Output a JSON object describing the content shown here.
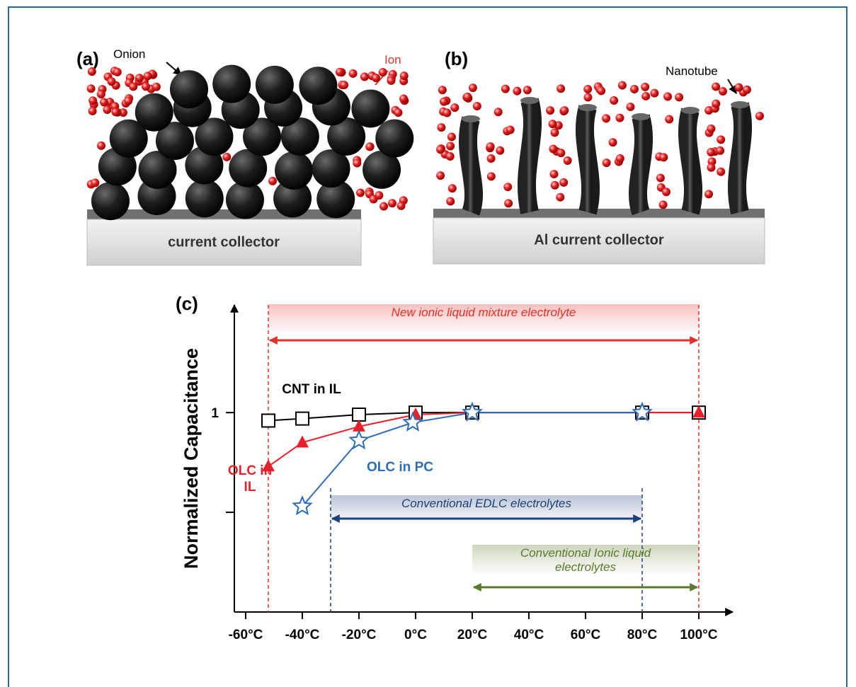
{
  "panel_a": {
    "label": "(a)",
    "particle_label": "Onion",
    "ion_label": "Ion",
    "collector_label": "current collector"
  },
  "panel_b": {
    "label": "(b)",
    "particle_label": "Nanotube",
    "collector_label": "Al current collector"
  },
  "chart_data": {
    "type": "line",
    "panel_label": "(c)",
    "y_label": "Normalized  Capacitance",
    "xlim": [
      -64,
      112
    ],
    "xticks": [
      {
        "value": -60,
        "label": "-60°C"
      },
      {
        "value": -40,
        "label": "-40°C"
      },
      {
        "value": -20,
        "label": "-20°C"
      },
      {
        "value": 0,
        "label": "0°C"
      },
      {
        "value": 20,
        "label": "20°C"
      },
      {
        "value": 40,
        "label": "40°C"
      },
      {
        "value": 60,
        "label": "60°C"
      },
      {
        "value": 80,
        "label": "80°C"
      },
      {
        "value": 100,
        "label": "100°C"
      }
    ],
    "ylim": [
      0,
      1.54
    ],
    "yticks": [
      {
        "value": 0.5,
        "label": null
      },
      1
    ],
    "series": [
      {
        "name": "CNT in IL",
        "color": "#000000",
        "marker": "square",
        "x": [
          -52,
          -40,
          -20,
          0,
          20,
          80,
          100
        ],
        "values": [
          0.96,
          0.97,
          0.99,
          1,
          1,
          1,
          1
        ]
      },
      {
        "name": "OLC in IL",
        "color": "#e8202a",
        "marker": "triangle",
        "x": [
          -52,
          -40,
          -20,
          0,
          20,
          80,
          100
        ],
        "values": [
          0.73,
          0.85,
          0.93,
          0.99,
          1,
          1,
          1
        ]
      },
      {
        "name": "OLC in PC",
        "color": "#2e6db4",
        "marker": "star",
        "x": [
          -40,
          -20,
          -1,
          20,
          80
        ],
        "values": [
          0.53,
          0.86,
          0.95,
          1,
          1
        ]
      }
    ],
    "ranges": [
      {
        "text": "New ionic liquid mixture electrolyte",
        "color": "#e0302a",
        "x": [
          -52,
          100
        ],
        "dashed": true
      },
      {
        "text": "Conventional  EDLC electrolytes",
        "color": "#1f3f7a",
        "x": [
          -30,
          80
        ],
        "dashed": true
      },
      {
        "text": "Conventional Ionic liquid electrolytes",
        "color": "#5a7a2a",
        "x": [
          20,
          100
        ],
        "dashed": false
      }
    ]
  }
}
